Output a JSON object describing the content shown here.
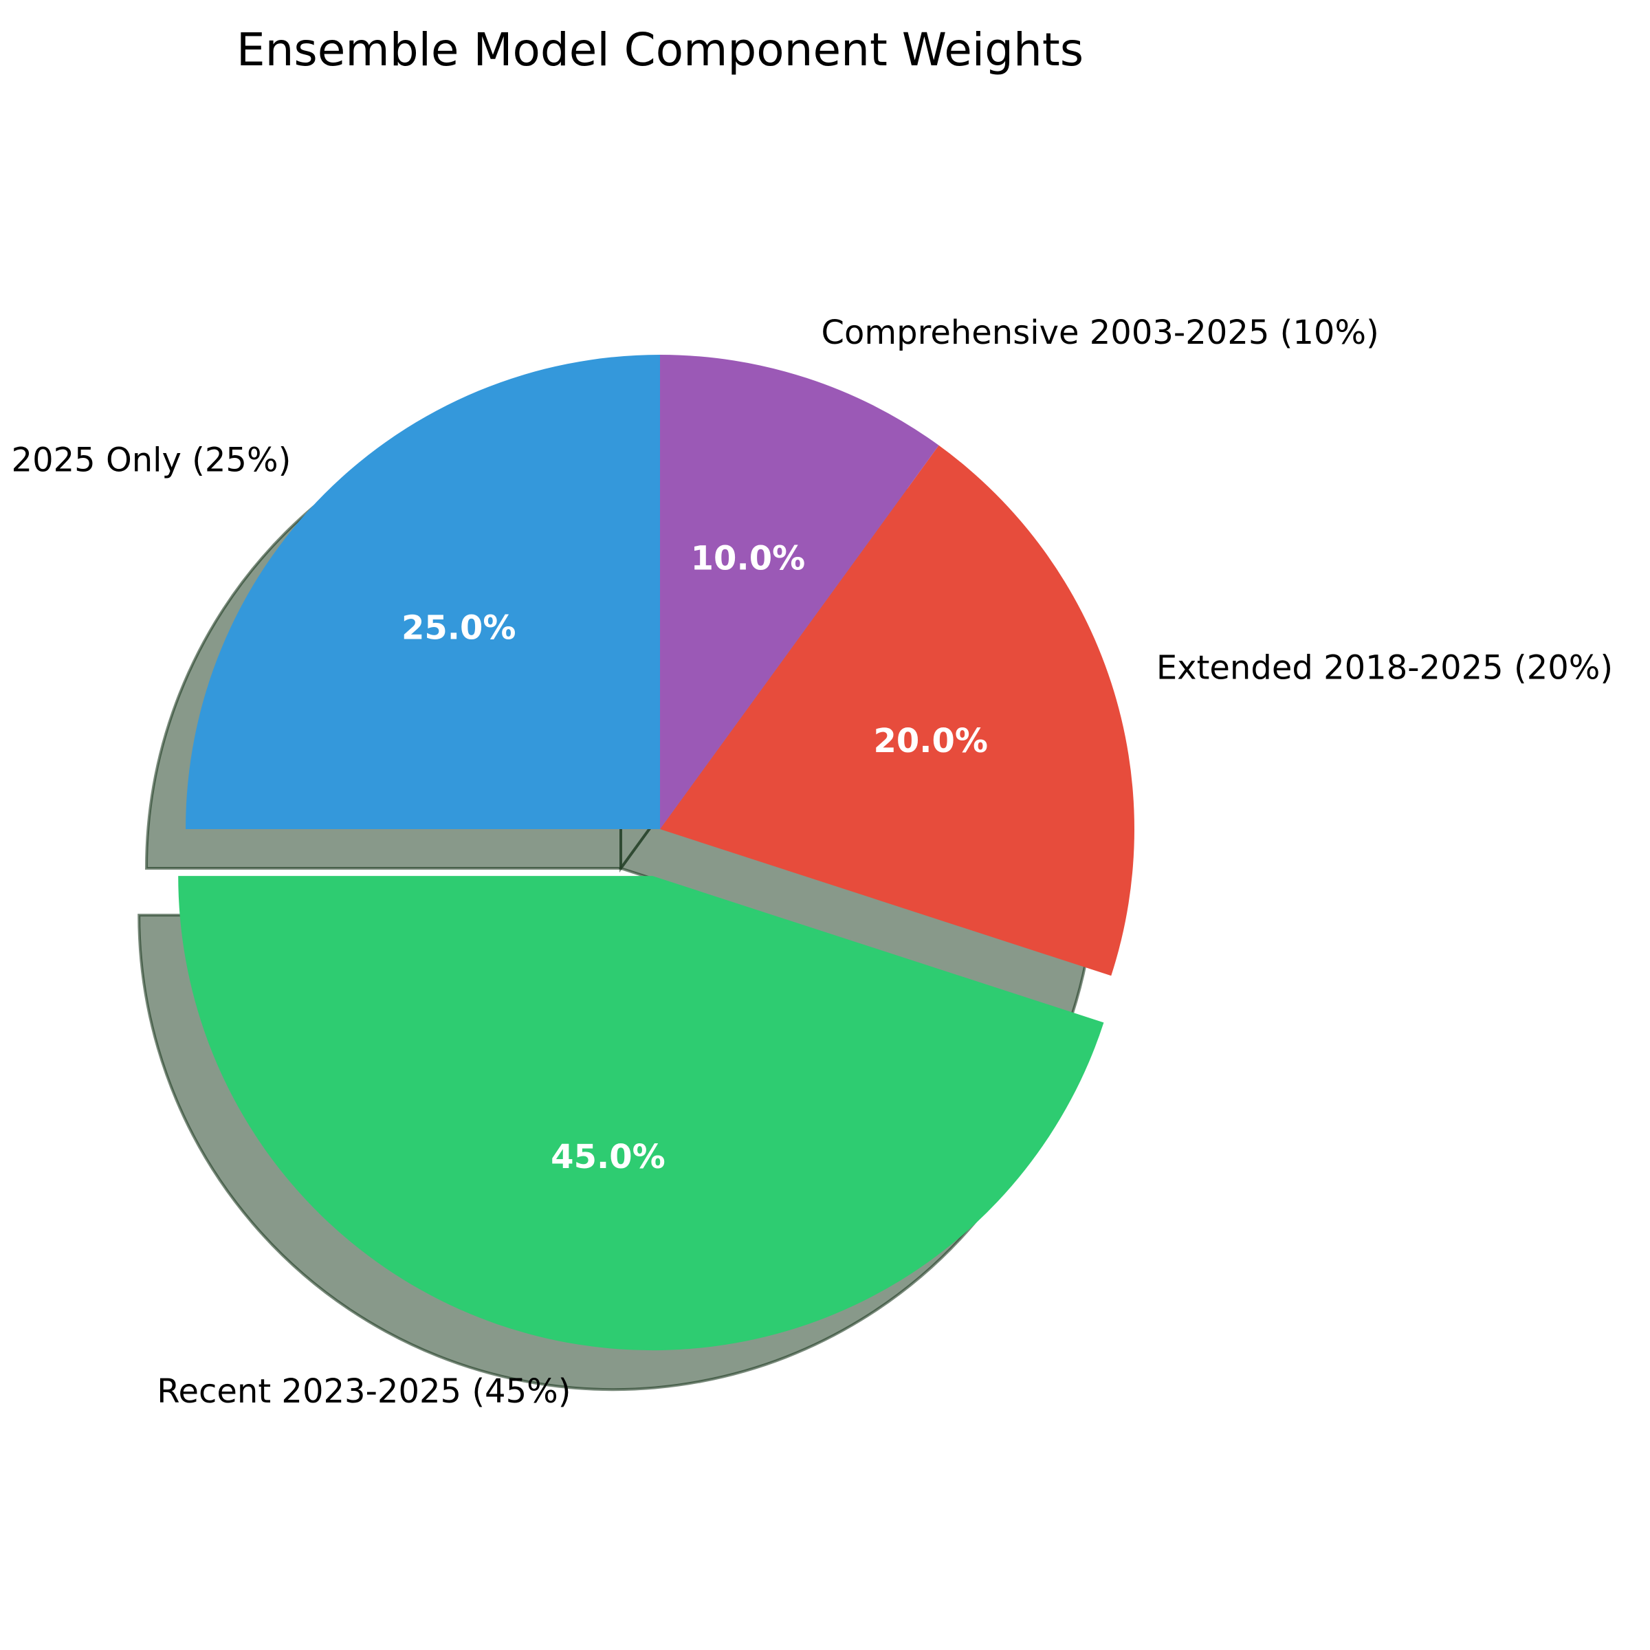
{
  "chart_data": {
    "type": "pie",
    "title": "Ensemble Model Component Weights",
    "slices": [
      {
        "label": "2025 Only (25%)",
        "value": 25,
        "pct_label": "25.0%",
        "color": "#3498db",
        "exploded": false
      },
      {
        "label": "Recent 2023-2025 (45%)",
        "value": 45,
        "pct_label": "45.0%",
        "color": "#2ecc71",
        "exploded": true
      },
      {
        "label": "Extended 2018-2025 (20%)",
        "value": 20,
        "pct_label": "20.0%",
        "color": "#e74c3c",
        "exploded": false
      },
      {
        "label": "Comprehensive 2003-2025 (10%)",
        "value": 10,
        "pct_label": "10.0%",
        "color": "#9b59b6",
        "exploded": false
      }
    ],
    "start_angle_deg": 90,
    "direction": "counterclockwise",
    "shadow": true,
    "legend": "none"
  }
}
